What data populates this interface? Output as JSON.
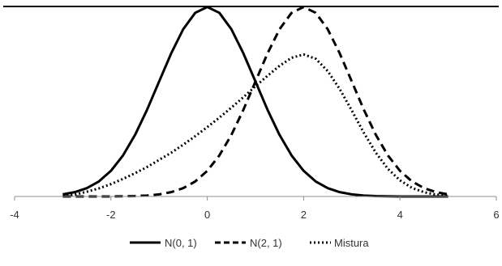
{
  "chart_data": {
    "type": "line",
    "title": "",
    "xlabel": "",
    "ylabel": "",
    "xlim": [
      -4,
      6
    ],
    "ylim": [
      0,
      0.4
    ],
    "x_ticks": [
      -4,
      -2,
      0,
      2,
      4,
      6
    ],
    "x_tick_labels": [
      "-4",
      "-2",
      "0",
      "2",
      "4",
      "6"
    ],
    "grid": false,
    "legend_position": "bottom",
    "series": [
      {
        "name": "N(0, 1)",
        "style": "solid",
        "color": "#000000",
        "x": [
          -3,
          -2.75,
          -2.5,
          -2.25,
          -2,
          -1.75,
          -1.5,
          -1.25,
          -1,
          -0.75,
          -0.5,
          -0.25,
          0,
          0.25,
          0.5,
          0.75,
          1,
          1.25,
          1.5,
          1.75,
          2,
          2.25,
          2.5,
          2.75,
          3,
          3.25,
          3.5,
          3.75,
          4,
          4.25,
          4.5,
          4.75,
          5
        ],
        "y": [
          0.0044,
          0.0091,
          0.0175,
          0.0317,
          0.054,
          0.0863,
          0.1295,
          0.1826,
          0.242,
          0.3011,
          0.3521,
          0.3867,
          0.3989,
          0.3867,
          0.3521,
          0.3011,
          0.242,
          0.1826,
          0.1295,
          0.0863,
          0.054,
          0.0317,
          0.0175,
          0.0091,
          0.0044,
          0.002,
          0.0009,
          0.0004,
          0.0001,
          0.0,
          0.0,
          0.0,
          0.0
        ]
      },
      {
        "name": "N(2, 1)",
        "style": "dashed",
        "color": "#000000",
        "x": [
          -3,
          -2.75,
          -2.5,
          -2.25,
          -2,
          -1.75,
          -1.5,
          -1.25,
          -1,
          -0.75,
          -0.5,
          -0.25,
          0,
          0.25,
          0.5,
          0.75,
          1,
          1.25,
          1.5,
          1.75,
          2,
          2.25,
          2.5,
          2.75,
          3,
          3.25,
          3.5,
          3.75,
          4,
          4.25,
          4.5,
          4.75,
          5
        ],
        "y": [
          0.0,
          0.0,
          0.0,
          0.0,
          0.0001,
          0.0004,
          0.0009,
          0.002,
          0.0044,
          0.0091,
          0.0175,
          0.0317,
          0.054,
          0.0863,
          0.1295,
          0.1826,
          0.242,
          0.3011,
          0.3521,
          0.3867,
          0.3989,
          0.3867,
          0.3521,
          0.3011,
          0.242,
          0.1826,
          0.1295,
          0.0863,
          0.054,
          0.0317,
          0.0175,
          0.0091,
          0.0044
        ]
      },
      {
        "name": "Mistura",
        "style": "dotted",
        "color": "#000000",
        "x": [
          -3,
          -2.75,
          -2.5,
          -2.25,
          -2,
          -1.75,
          -1.5,
          -1.25,
          -1,
          -0.75,
          -0.5,
          -0.25,
          0,
          0.25,
          0.5,
          0.75,
          1,
          1.25,
          1.5,
          1.75,
          2,
          2.25,
          2.5,
          2.75,
          3,
          3.25,
          3.5,
          3.75,
          4,
          4.25,
          4.5,
          4.75,
          5
        ],
        "y": [
          0.001,
          0.004,
          0.01,
          0.017,
          0.026,
          0.037,
          0.049,
          0.062,
          0.077,
          0.092,
          0.109,
          0.127,
          0.146,
          0.166,
          0.187,
          0.209,
          0.232,
          0.254,
          0.275,
          0.292,
          0.299,
          0.29,
          0.264,
          0.226,
          0.181,
          0.134,
          0.092,
          0.058,
          0.034,
          0.018,
          0.009,
          0.004,
          0.002
        ]
      }
    ]
  }
}
